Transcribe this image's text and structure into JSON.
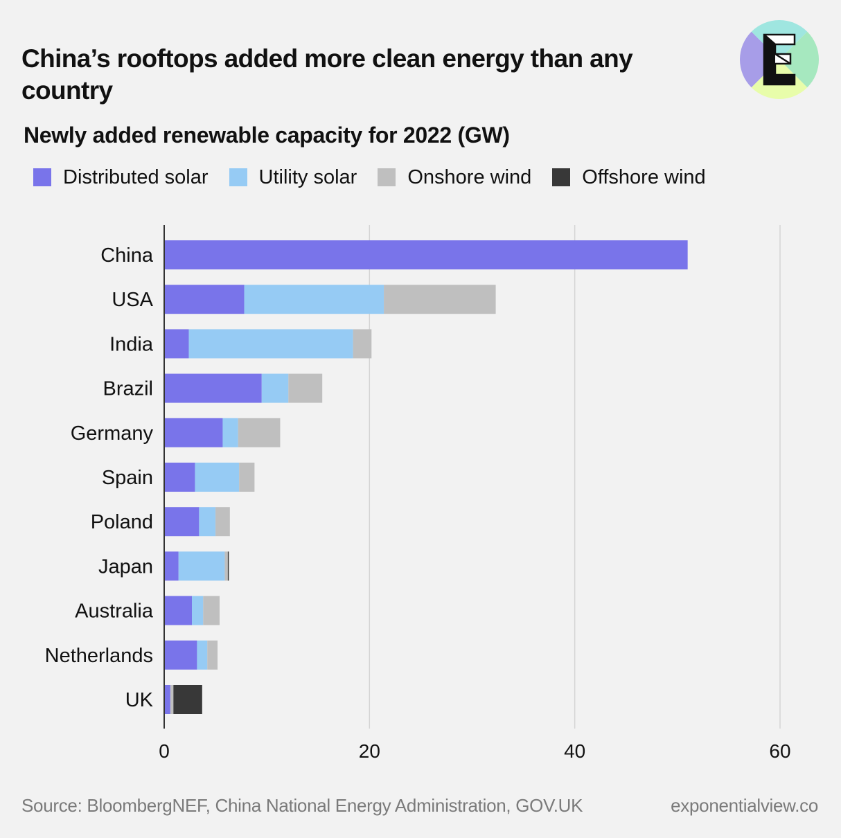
{
  "title": "China’s rooftops added more clean energy than any country",
  "subtitle": "Newly added renewable capacity for 2022 (GW)",
  "legend": [
    {
      "label": "Distributed solar",
      "color": "#7974ea"
    },
    {
      "label": "Utility solar",
      "color": "#96cbf4"
    },
    {
      "label": "Onshore wind",
      "color": "#bfbfbf"
    },
    {
      "label": "Offshore wind",
      "color": "#383838"
    }
  ],
  "logo": {
    "letter": "E",
    "icon": "exponential-view-logo-icon",
    "colors": [
      "#a79de8",
      "#9fe6e0",
      "#a6e8bf",
      "#e8fdaa"
    ]
  },
  "source": "Source: BloombergNEF, China National Energy Administration, GOV.UK",
  "site": "exponentialview.co",
  "chart_data": {
    "type": "bar",
    "orientation": "horizontal",
    "stacked": true,
    "categories": [
      "China",
      "USA",
      "India",
      "Brazil",
      "Germany",
      "Spain",
      "Poland",
      "Japan",
      "Australia",
      "Netherlands",
      "UK"
    ],
    "series": [
      {
        "name": "Distributed solar",
        "color": "#7974ea",
        "values": [
          51.0,
          7.8,
          2.4,
          9.5,
          5.7,
          3.0,
          3.4,
          1.4,
          2.7,
          3.2,
          0.6
        ]
      },
      {
        "name": "Utility solar",
        "color": "#96cbf4",
        "values": [
          0,
          13.6,
          16.0,
          2.6,
          1.5,
          4.3,
          1.6,
          4.5,
          1.1,
          1.0,
          0
        ]
      },
      {
        "name": "Onshore wind",
        "color": "#bfbfbf",
        "values": [
          0,
          10.9,
          1.8,
          3.3,
          4.1,
          1.5,
          1.4,
          0.3,
          1.6,
          1.0,
          0.3
        ]
      },
      {
        "name": "Offshore wind",
        "color": "#383838",
        "values": [
          0,
          0,
          0,
          0,
          0,
          0,
          0,
          0.1,
          0,
          0,
          2.8
        ]
      }
    ],
    "xlim": [
      0,
      60
    ],
    "xticks": [
      0,
      20,
      40,
      60
    ],
    "xlabel": "",
    "ylabel": "",
    "grid": true,
    "legend_position": "top"
  }
}
